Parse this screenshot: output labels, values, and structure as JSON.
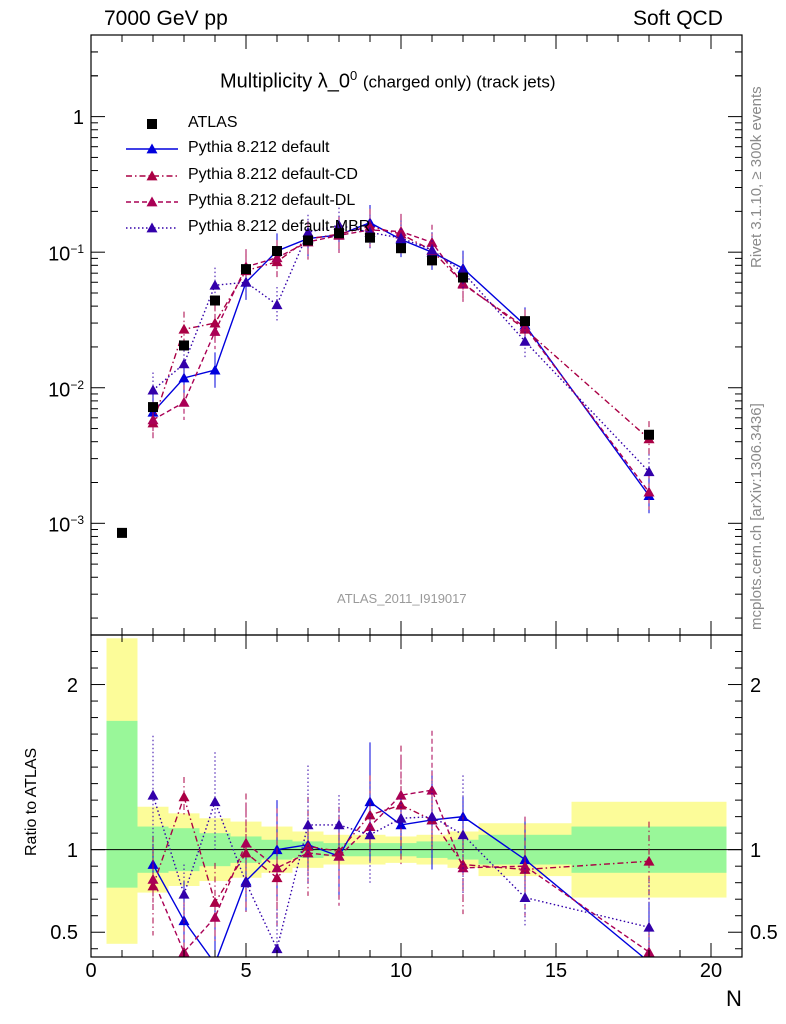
{
  "header": {
    "left": "7000 GeV pp",
    "right": "Soft QCD"
  },
  "plot_title": {
    "main": "Multiplicity λ_0",
    "superscript": "0",
    "suffix": "(charged only) (track jets)"
  },
  "side_texts": {
    "rivet": "Rivet 3.1.10, ≥ 300k events",
    "mcplots": "mcplots.cern.ch [arXiv:1306.3436]"
  },
  "watermark": "ATLAS_2011_I919017",
  "colors": {
    "data": "#000000",
    "default": "#0000dd",
    "cd": "#aa0044",
    "dl": "#aa0055",
    "mbr": "#3300aa",
    "band_green": "#99f799",
    "band_yellow": "#fcfc99"
  },
  "chart_data": [
    {
      "type": "line",
      "panel": "main",
      "yscale": "log",
      "xlim": [
        0,
        21
      ],
      "ylim": [
        0.00015,
        4.0
      ],
      "ytick_labels": [
        {
          "value": 1,
          "label": "1",
          "exp": ""
        },
        {
          "value": 0.1,
          "label": "10",
          "exp": "−1"
        },
        {
          "value": 0.01,
          "label": "10",
          "exp": "−2"
        },
        {
          "value": 0.001,
          "label": "10",
          "exp": "−3"
        }
      ],
      "legend": [
        "ATLAS",
        "Pythia 8.212 default",
        "Pythia 8.212 default-CD",
        "Pythia 8.212 default-DL",
        "Pythia 8.212 default-MBR"
      ],
      "data_points": {
        "x": [
          1,
          2,
          3,
          4,
          5,
          6,
          7,
          8,
          9,
          10,
          11,
          12,
          14,
          18
        ],
        "y": [
          0.00085,
          0.0072,
          0.0205,
          0.044,
          0.075,
          0.102,
          0.122,
          0.138,
          0.128,
          0.107,
          0.087,
          0.065,
          0.031,
          0.0045
        ]
      },
      "series": [
        {
          "name": "Pythia 8.212 default",
          "style": "solid",
          "x": [
            2,
            3,
            4,
            5,
            6,
            7,
            8,
            9,
            10,
            11,
            12,
            14,
            18
          ],
          "y": [
            0.0066,
            0.0118,
            0.0135,
            0.06,
            0.102,
            0.126,
            0.134,
            0.165,
            0.124,
            0.1,
            0.076,
            0.029,
            0.0016
          ]
        },
        {
          "name": "Pythia 8.212 default-CD",
          "style": "dashdot",
          "x": [
            2,
            3,
            4,
            5,
            6,
            7,
            8,
            9,
            10,
            11,
            12,
            14,
            18
          ],
          "y": [
            0.0055,
            0.027,
            0.03,
            0.073,
            0.085,
            0.125,
            0.136,
            0.155,
            0.136,
            0.103,
            0.059,
            0.027,
            0.0042
          ]
        },
        {
          "name": "Pythia 8.212 default-DL",
          "style": "dashed",
          "x": [
            2,
            3,
            4,
            5,
            6,
            7,
            8,
            9,
            10,
            11,
            12,
            14,
            18
          ],
          "y": [
            0.0058,
            0.0078,
            0.026,
            0.078,
            0.091,
            0.119,
            0.133,
            0.146,
            0.142,
            0.118,
            0.058,
            0.028,
            0.0017
          ]
        },
        {
          "name": "Pythia 8.212 default-MBR",
          "style": "dotted",
          "x": [
            2,
            3,
            4,
            5,
            6,
            7,
            8,
            9,
            10,
            11,
            12,
            14,
            18
          ],
          "y": [
            0.0096,
            0.015,
            0.057,
            0.06,
            0.041,
            0.14,
            0.158,
            0.14,
            0.127,
            0.104,
            0.071,
            0.022,
            0.0024
          ]
        }
      ]
    },
    {
      "type": "line",
      "panel": "ratio",
      "xlim": [
        0,
        21
      ],
      "ylim": [
        0.35,
        2.3
      ],
      "xlabel": "N",
      "ylabel": "Ratio to ATLAS",
      "xtick_labels": [
        {
          "value": 0,
          "label": "0"
        },
        {
          "value": 5,
          "label": "5"
        },
        {
          "value": 10,
          "label": "10"
        },
        {
          "value": 15,
          "label": "15"
        },
        {
          "value": 20,
          "label": "20"
        }
      ],
      "ytick_labels": [
        {
          "value": 2,
          "label": "2"
        },
        {
          "value": 1,
          "label": "1"
        },
        {
          "value": 0.5,
          "label": "0.5"
        }
      ],
      "bands": [
        {
          "x0": 0.5,
          "x1": 1.5,
          "green": [
            0.77,
            1.78
          ],
          "yellow": [
            0.43,
            2.28
          ]
        },
        {
          "x0": 1.5,
          "x1": 2.5,
          "green": [
            0.86,
            1.14
          ],
          "yellow": [
            0.74,
            1.26
          ]
        },
        {
          "x0": 2.5,
          "x1": 3.5,
          "green": [
            0.87,
            1.13
          ],
          "yellow": [
            0.78,
            1.22
          ]
        },
        {
          "x0": 3.5,
          "x1": 4.5,
          "green": [
            0.9,
            1.1
          ],
          "yellow": [
            0.81,
            1.19
          ]
        },
        {
          "x0": 4.5,
          "x1": 5.5,
          "green": [
            0.92,
            1.08
          ],
          "yellow": [
            0.83,
            1.17
          ]
        },
        {
          "x0": 5.5,
          "x1": 6.5,
          "green": [
            0.94,
            1.06
          ],
          "yellow": [
            0.86,
            1.14
          ]
        },
        {
          "x0": 6.5,
          "x1": 7.5,
          "green": [
            0.95,
            1.05
          ],
          "yellow": [
            0.89,
            1.11
          ]
        },
        {
          "x0": 7.5,
          "x1": 8.5,
          "green": [
            0.96,
            1.04
          ],
          "yellow": [
            0.91,
            1.09
          ]
        },
        {
          "x0": 8.5,
          "x1": 9.5,
          "green": [
            0.96,
            1.04
          ],
          "yellow": [
            0.91,
            1.09
          ]
        },
        {
          "x0": 9.5,
          "x1": 10.5,
          "green": [
            0.96,
            1.04
          ],
          "yellow": [
            0.92,
            1.08
          ]
        },
        {
          "x0": 10.5,
          "x1": 11.5,
          "green": [
            0.95,
            1.05
          ],
          "yellow": [
            0.91,
            1.09
          ]
        },
        {
          "x0": 11.5,
          "x1": 12.5,
          "green": [
            0.94,
            1.06
          ],
          "yellow": [
            0.89,
            1.11
          ]
        },
        {
          "x0": 12.5,
          "x1": 15.5,
          "green": [
            0.91,
            1.09
          ],
          "yellow": [
            0.84,
            1.16
          ]
        },
        {
          "x0": 15.5,
          "x1": 20.5,
          "green": [
            0.86,
            1.14
          ],
          "yellow": [
            0.71,
            1.29
          ]
        }
      ],
      "series": [
        {
          "name": "Pythia 8.212 default",
          "style": "solid",
          "x": [
            2,
            3,
            4,
            5,
            6,
            7,
            8,
            9,
            10,
            11,
            12,
            14,
            18
          ],
          "y": [
            0.91,
            0.57,
            0.31,
            0.81,
            1.0,
            1.03,
            0.96,
            1.29,
            1.15,
            1.18,
            1.2,
            0.94,
            0.32
          ]
        },
        {
          "name": "Pythia 8.212 default-CD",
          "style": "dashdot",
          "x": [
            2,
            3,
            4,
            5,
            6,
            7,
            8,
            9,
            10,
            11,
            12,
            14,
            18
          ],
          "y": [
            0.78,
            1.32,
            0.68,
            0.98,
            0.83,
            1.02,
            0.99,
            1.21,
            1.27,
            1.18,
            0.91,
            0.88,
            0.93
          ]
        },
        {
          "name": "Pythia 8.212 default-DL",
          "style": "dashed",
          "x": [
            2,
            3,
            4,
            5,
            6,
            7,
            8,
            9,
            10,
            11,
            12,
            14,
            18
          ],
          "y": [
            0.82,
            0.38,
            0.59,
            1.04,
            0.89,
            0.98,
            0.96,
            1.14,
            1.33,
            1.36,
            0.89,
            0.9,
            0.38
          ]
        },
        {
          "name": "Pythia 8.212 default-MBR",
          "style": "dotted",
          "x": [
            2,
            3,
            4,
            5,
            6,
            7,
            8,
            9,
            10,
            11,
            12,
            14,
            18
          ],
          "y": [
            1.33,
            0.73,
            1.29,
            0.8,
            0.4,
            1.15,
            1.15,
            1.09,
            1.19,
            1.2,
            1.09,
            0.71,
            0.53
          ]
        }
      ]
    }
  ]
}
